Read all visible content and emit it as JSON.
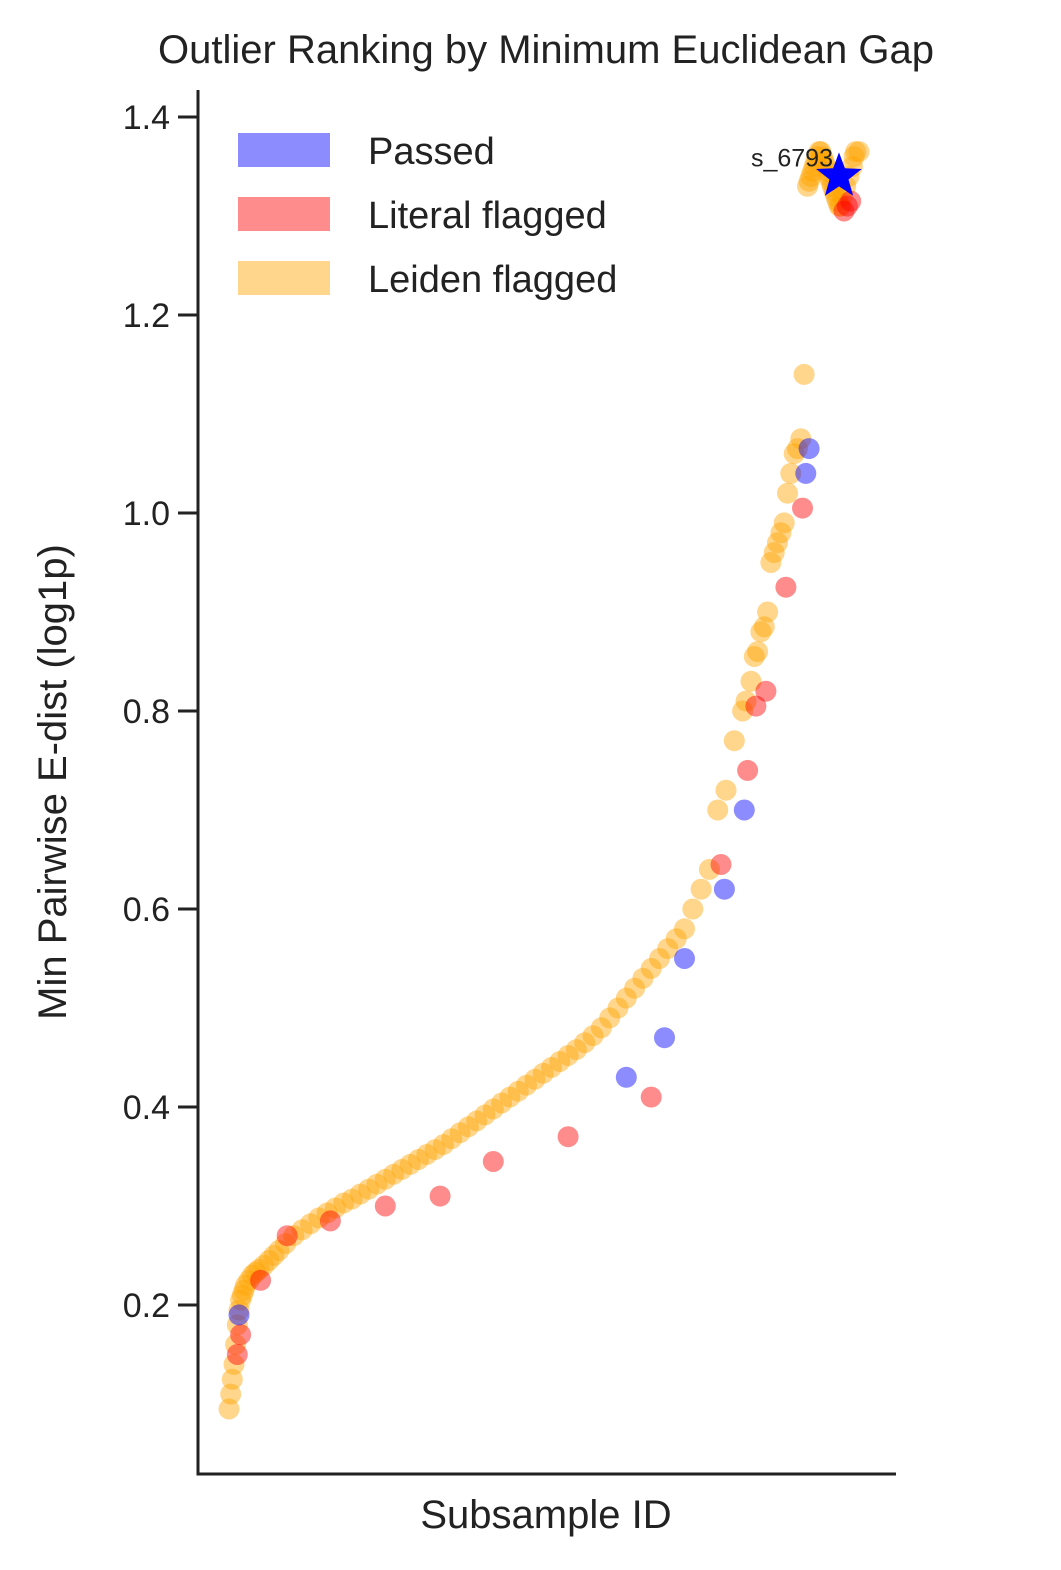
{
  "chart_data": {
    "type": "scatter",
    "title": "Outlier Ranking by Minimum Euclidean Gap",
    "xlabel": "Subsample ID",
    "ylabel": "Min Pairwise E-dist (log1p)",
    "ylim": [
      0.03,
      1.43
    ],
    "yticks": [
      0.2,
      0.4,
      0.6,
      0.8,
      1.0,
      1.2,
      1.4
    ],
    "ytick_labels": [
      "0.2",
      "0.4",
      "0.6",
      "0.8",
      "1.0",
      "1.2",
      "1.4"
    ],
    "x_ticks_shown": false,
    "grid": false,
    "legend_position": "top-left",
    "legend": [
      {
        "label": "Passed",
        "color": "#0000ff"
      },
      {
        "label": "Literal flagged",
        "color": "#ff0000"
      },
      {
        "label": "Leiden flagged",
        "color": "#ffa500"
      }
    ],
    "series": [
      {
        "name": "Leiden flagged",
        "color": "#ffa500",
        "rank": [
          1,
          2,
          3,
          4,
          5,
          6,
          7,
          8,
          9,
          10,
          11,
          13,
          15,
          17,
          19,
          22,
          25,
          28,
          31,
          35,
          40,
          45,
          50,
          55,
          60,
          65,
          70,
          75,
          80,
          85,
          90,
          95,
          100,
          105,
          110,
          115,
          120,
          125,
          130,
          135,
          140,
          145,
          150,
          155,
          160,
          165,
          170,
          175,
          180,
          185,
          190,
          195,
          200,
          205,
          210,
          215,
          220,
          225,
          230,
          235,
          240,
          245,
          250,
          255,
          260,
          265,
          270,
          275,
          280,
          285,
          290,
          295,
          300,
          305,
          310,
          312,
          315,
          317,
          319,
          321,
          323,
          325,
          327,
          329,
          331,
          333,
          335,
          337,
          339,
          341,
          343,
          345,
          347,
          349,
          350,
          351,
          352,
          353,
          354,
          355,
          356,
          357,
          358,
          359,
          360,
          361,
          362,
          363,
          364,
          365,
          366,
          367,
          368,
          369,
          370,
          372,
          374,
          376,
          377,
          378,
          380
        ],
        "values": [
          0.095,
          0.11,
          0.125,
          0.14,
          0.16,
          0.18,
          0.195,
          0.205,
          0.21,
          0.215,
          0.22,
          0.225,
          0.23,
          0.233,
          0.236,
          0.24,
          0.245,
          0.25,
          0.255,
          0.262,
          0.27,
          0.276,
          0.282,
          0.288,
          0.293,
          0.298,
          0.303,
          0.307,
          0.312,
          0.317,
          0.322,
          0.327,
          0.332,
          0.337,
          0.342,
          0.347,
          0.352,
          0.357,
          0.362,
          0.368,
          0.374,
          0.38,
          0.386,
          0.392,
          0.398,
          0.404,
          0.41,
          0.416,
          0.422,
          0.428,
          0.434,
          0.44,
          0.446,
          0.452,
          0.458,
          0.465,
          0.472,
          0.48,
          0.49,
          0.5,
          0.51,
          0.52,
          0.53,
          0.54,
          0.55,
          0.56,
          0.57,
          0.58,
          0.6,
          0.62,
          0.64,
          0.7,
          0.72,
          0.77,
          0.8,
          0.81,
          0.83,
          0.855,
          0.86,
          0.88,
          0.885,
          0.9,
          0.95,
          0.96,
          0.97,
          0.98,
          0.99,
          1.02,
          1.04,
          1.06,
          1.065,
          1.075,
          1.14,
          1.33,
          1.335,
          1.34,
          1.345,
          1.35,
          1.355,
          1.36,
          1.365,
          1.365,
          1.36,
          1.355,
          1.35,
          1.345,
          1.34,
          1.335,
          1.33,
          1.325,
          1.32,
          1.315,
          1.31,
          1.31,
          1.32,
          1.33,
          1.34,
          1.35,
          1.36,
          1.365,
          1.365
        ]
      },
      {
        "name": "Literal flagged",
        "color": "#ff0000",
        "rank": [
          6,
          8,
          20,
          36,
          62,
          95,
          128,
          160,
          205,
          255,
          297,
          313,
          318,
          324,
          336,
          346,
          371,
          373,
          375
        ],
        "values": [
          0.15,
          0.17,
          0.225,
          0.27,
          0.285,
          0.3,
          0.31,
          0.345,
          0.37,
          0.41,
          0.645,
          0.74,
          0.805,
          0.82,
          0.925,
          1.005,
          1.305,
          1.31,
          1.315
        ]
      },
      {
        "name": "Passed",
        "color": "#0000ff",
        "rank": [
          7,
          240,
          263,
          275,
          299,
          311,
          348,
          350
        ],
        "values": [
          0.19,
          0.43,
          0.47,
          0.55,
          0.62,
          0.7,
          1.04,
          1.065
        ]
      }
    ],
    "highlight": {
      "label": "s_6793",
      "rank": 380,
      "value": 1.34,
      "marker": "star",
      "color": "#0000ff"
    }
  }
}
